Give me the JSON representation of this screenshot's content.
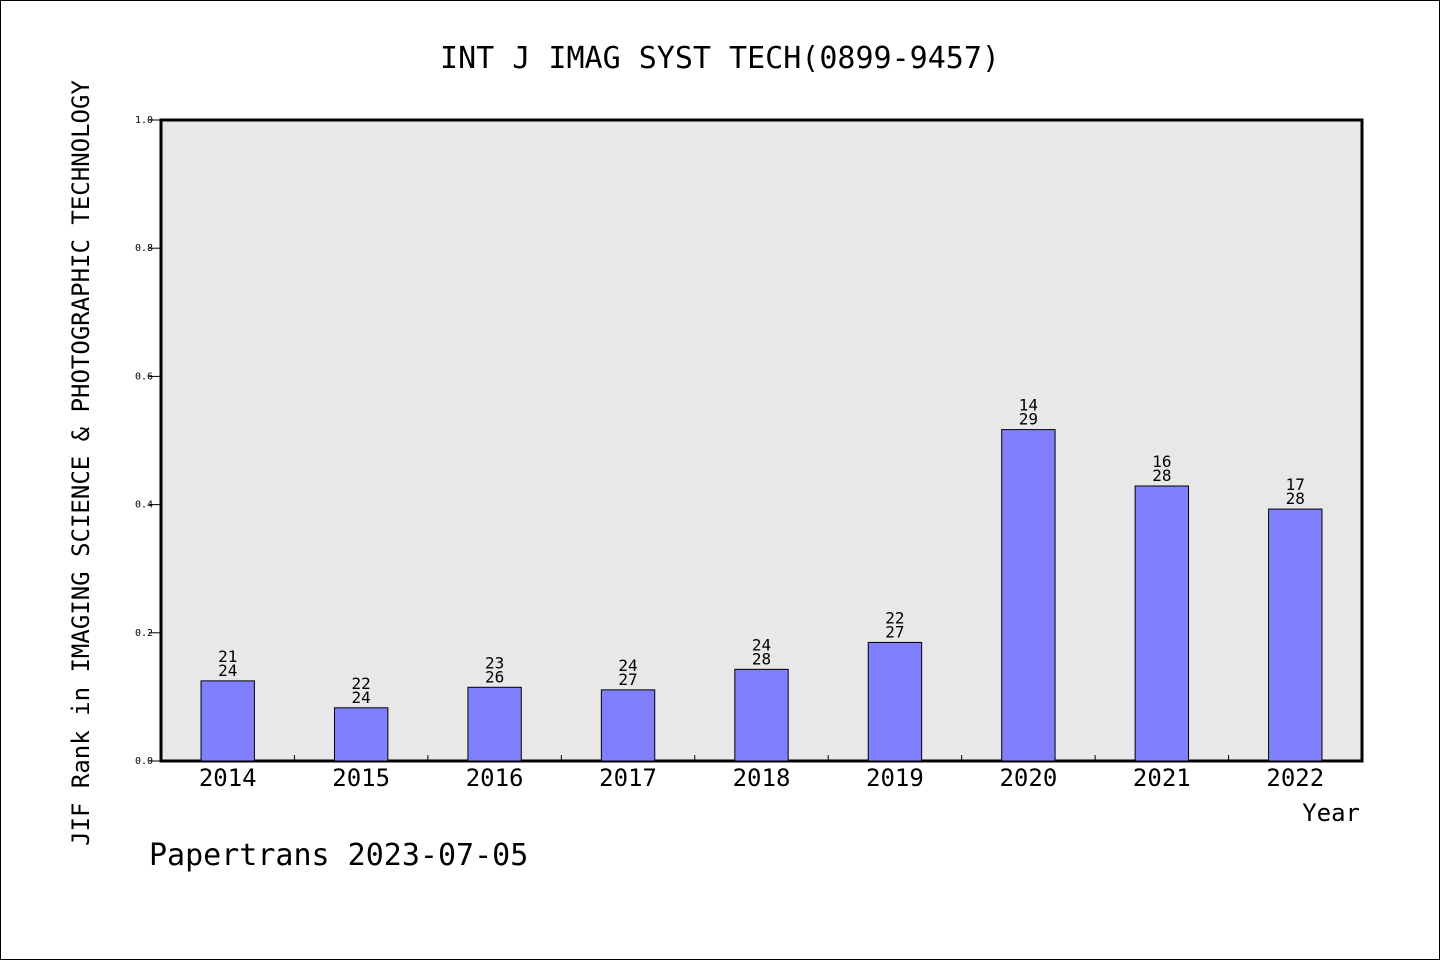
{
  "chart_data": {
    "type": "bar",
    "title": "INT J IMAG SYST TECH(0899-9457)",
    "ylabel": "JIF Rank in IMAGING SCIENCE & PHOTOGRAPHIC TECHNOLOGY",
    "xlabel": "Year",
    "ylim": [
      0,
      1.0
    ],
    "yticks": [
      "0.0",
      "0.2",
      "0.4",
      "0.6",
      "0.8",
      "1.0"
    ],
    "categories": [
      "2014",
      "2015",
      "2016",
      "2017",
      "2018",
      "2019",
      "2020",
      "2021",
      "2022"
    ],
    "values": [
      0.125,
      0.083,
      0.115,
      0.111,
      0.143,
      0.185,
      0.517,
      0.429,
      0.393
    ],
    "rank_labels": [
      [
        "21",
        "24"
      ],
      [
        "22",
        "24"
      ],
      [
        "23",
        "26"
      ],
      [
        "24",
        "27"
      ],
      [
        "24",
        "28"
      ],
      [
        "22",
        "27"
      ],
      [
        "14",
        "29"
      ],
      [
        "16",
        "28"
      ],
      [
        "17",
        "28"
      ]
    ],
    "bar_color": "#8080ff",
    "plot_background": "#e8e8e8",
    "grid": false
  },
  "footer": "Papertrans 2023-07-05"
}
